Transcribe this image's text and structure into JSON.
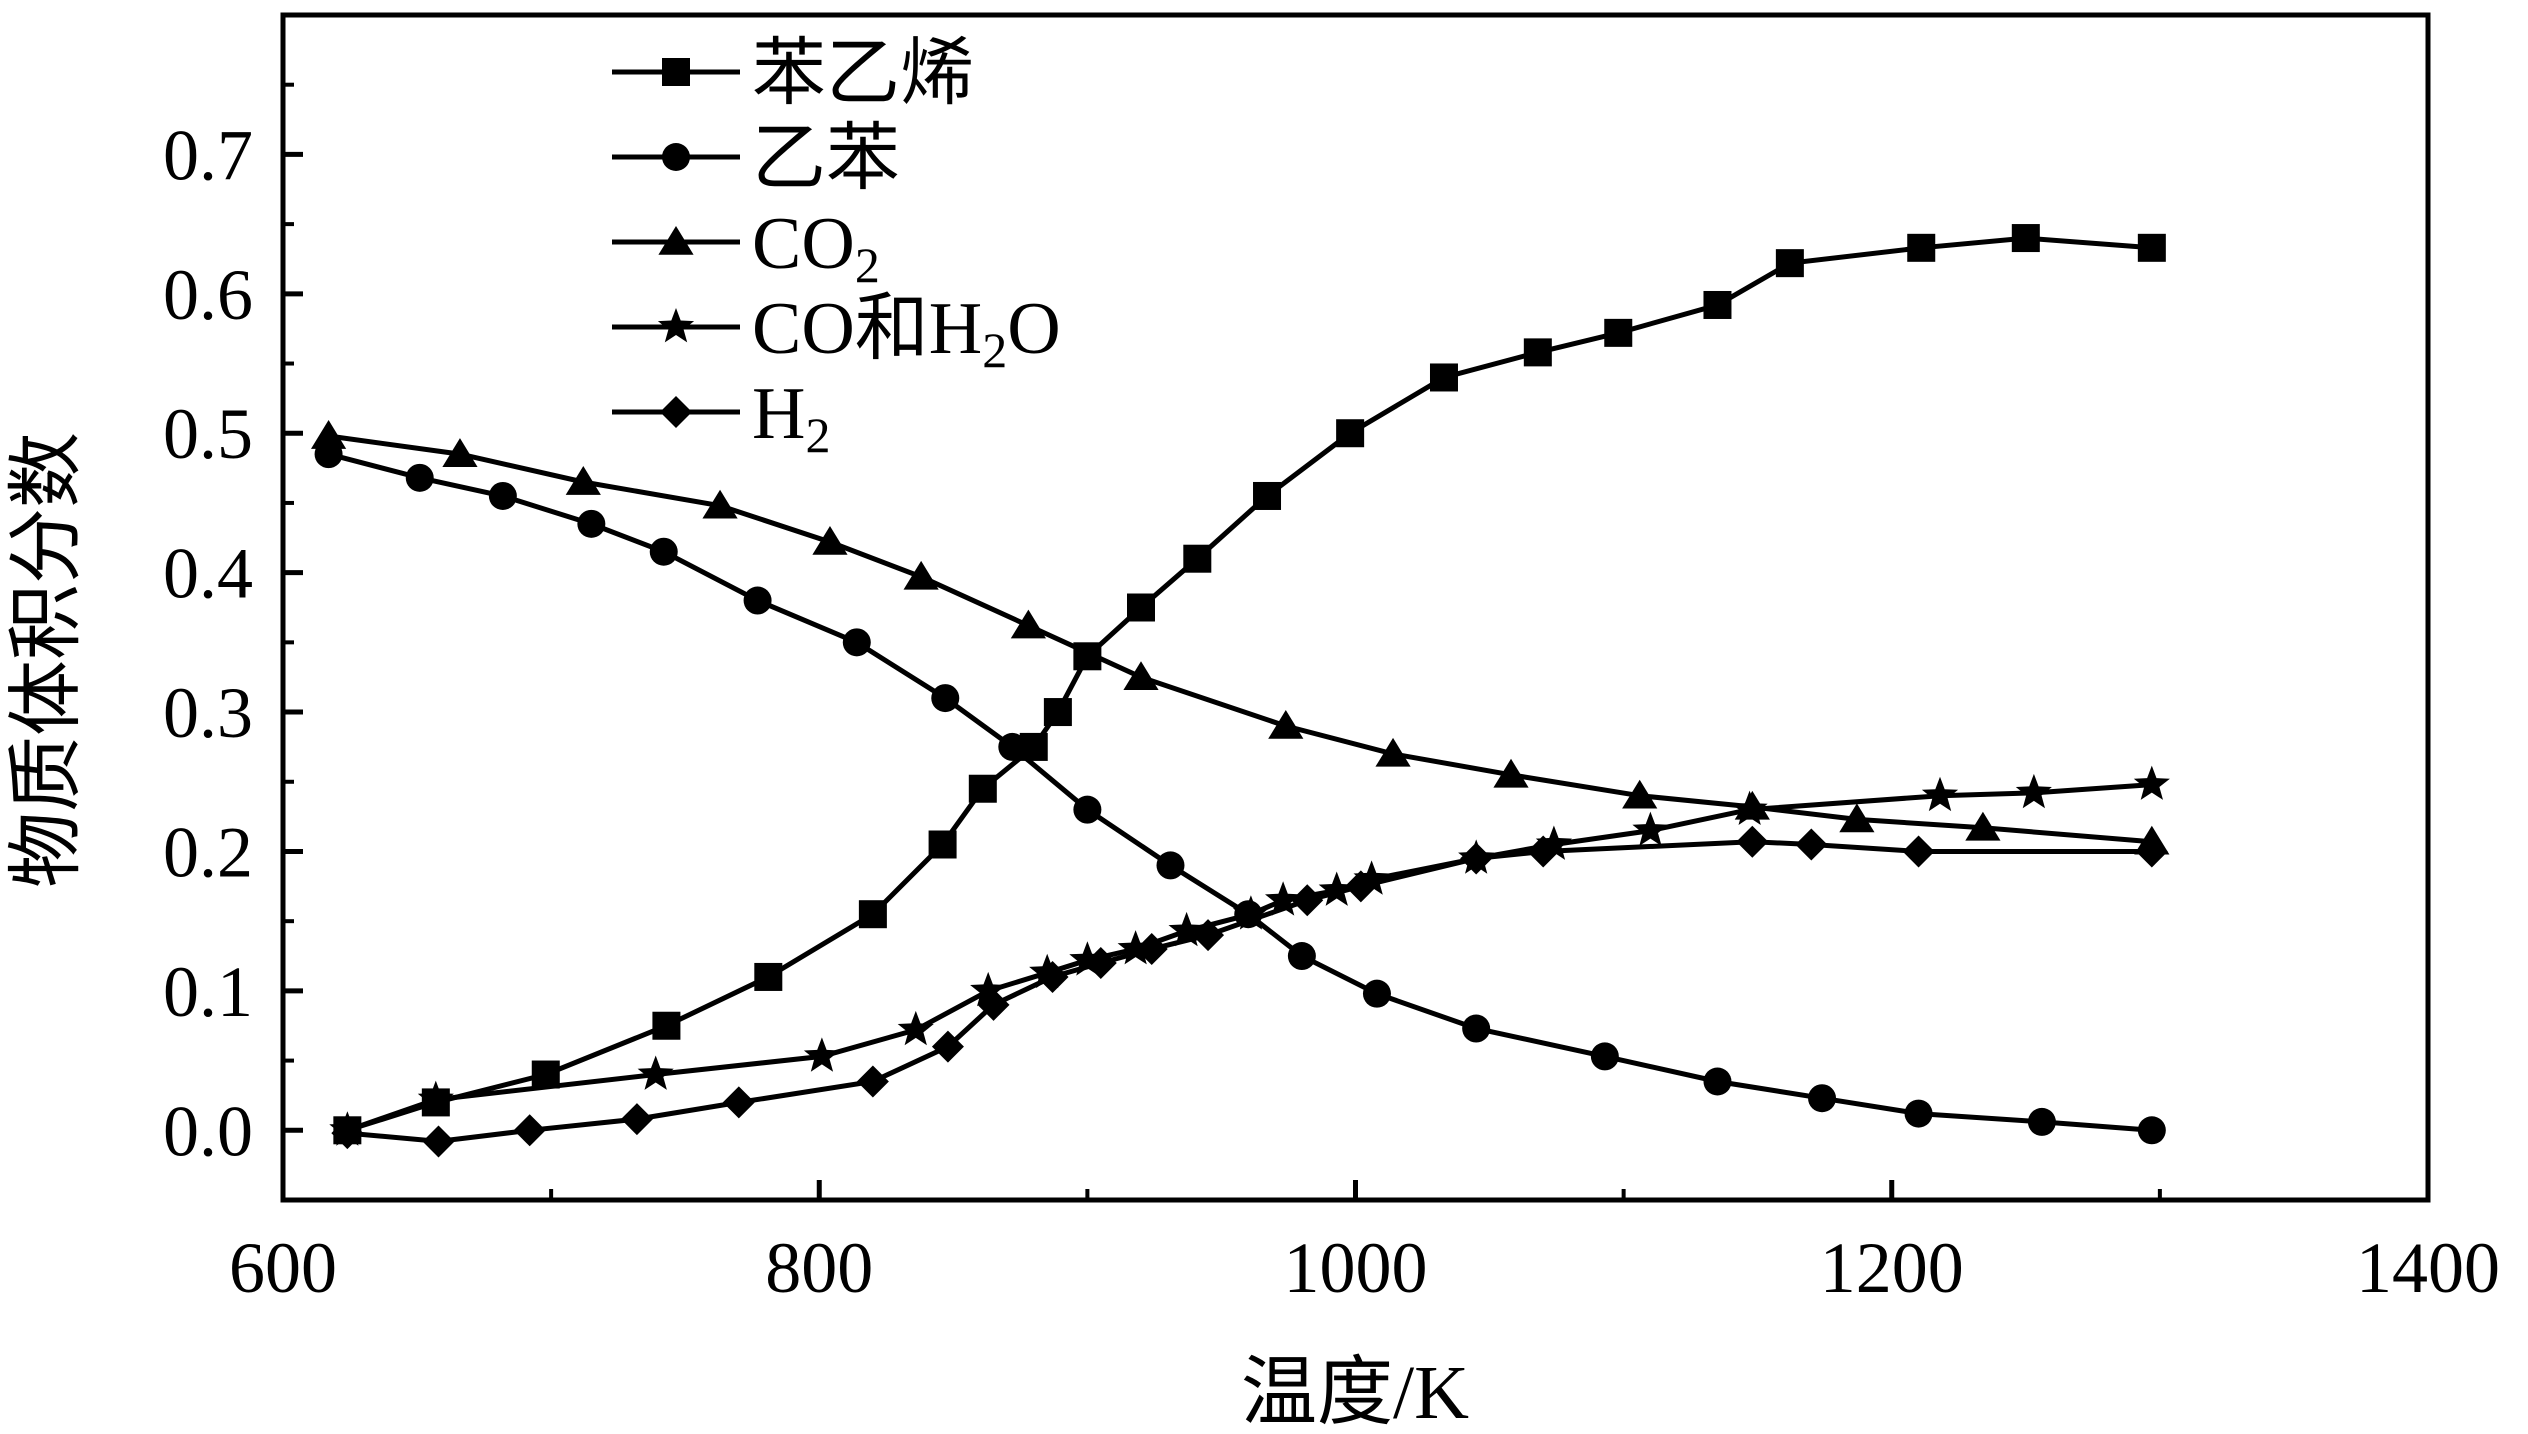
{
  "chart_data": {
    "type": "line",
    "xlabel": "温度/K",
    "ylabel": "物质体积分数",
    "xlim": [
      600,
      1400
    ],
    "ylim": [
      -0.05,
      0.8
    ],
    "xticks": [
      "600",
      "800",
      "1000",
      "1200",
      "1400"
    ],
    "yticks": [
      "0.0",
      "0.1",
      "0.2",
      "0.3",
      "0.4",
      "0.5",
      "0.6",
      "0.7"
    ],
    "grid": false,
    "legend_position": "top-left",
    "series": [
      {
        "name": "苯乙烯",
        "marker": "square",
        "x": [
          624,
          657,
          698,
          743,
          781,
          820,
          846,
          861,
          880,
          889,
          900,
          920,
          941,
          967,
          998,
          1033,
          1068,
          1098,
          1135,
          1162,
          1211,
          1250,
          1297
        ],
        "y": [
          0.0,
          0.02,
          0.04,
          0.075,
          0.11,
          0.155,
          0.205,
          0.245,
          0.275,
          0.3,
          0.34,
          0.375,
          0.41,
          0.455,
          0.5,
          0.54,
          0.558,
          0.572,
          0.592,
          0.622,
          0.633,
          0.64,
          0.633
        ]
      },
      {
        "name": "乙苯",
        "marker": "circle",
        "x": [
          617,
          651,
          682,
          715,
          742,
          777,
          814,
          847,
          872,
          900,
          931,
          960,
          980,
          1008,
          1045,
          1093,
          1135,
          1174,
          1210,
          1256,
          1297
        ],
        "y": [
          0.485,
          0.468,
          0.455,
          0.435,
          0.415,
          0.38,
          0.35,
          0.31,
          0.275,
          0.23,
          0.19,
          0.155,
          0.125,
          0.098,
          0.073,
          0.053,
          0.035,
          0.023,
          0.012,
          0.006,
          0.0
        ]
      },
      {
        "name": "CO2",
        "marker": "triangle",
        "x": [
          617,
          666,
          712,
          763,
          804,
          838,
          878,
          920,
          974,
          1014,
          1058,
          1106,
          1148,
          1187,
          1234,
          1297
        ],
        "y": [
          0.498,
          0.485,
          0.465,
          0.448,
          0.422,
          0.397,
          0.362,
          0.325,
          0.29,
          0.27,
          0.255,
          0.24,
          0.232,
          0.223,
          0.217,
          0.207
        ]
      },
      {
        "name": "CO和H2O",
        "marker": "star",
        "x": [
          624,
          657,
          739,
          801,
          836,
          863,
          885,
          900,
          918,
          937,
          961,
          973,
          993,
          1006,
          1045,
          1074,
          1110,
          1147,
          1218,
          1253,
          1297
        ],
        "y": [
          0.0,
          0.022,
          0.04,
          0.053,
          0.072,
          0.1,
          0.113,
          0.122,
          0.13,
          0.143,
          0.155,
          0.165,
          0.172,
          0.18,
          0.195,
          0.205,
          0.215,
          0.23,
          0.24,
          0.242,
          0.248
        ]
      },
      {
        "name": "H2",
        "marker": "diamond",
        "x": [
          624,
          658,
          692,
          732,
          770,
          820,
          848,
          865,
          887,
          905,
          924,
          945,
          982,
          1002,
          1045,
          1070,
          1148,
          1170,
          1210,
          1297
        ],
        "y": [
          -0.002,
          -0.008,
          0.0,
          0.008,
          0.02,
          0.035,
          0.06,
          0.09,
          0.11,
          0.12,
          0.13,
          0.14,
          0.165,
          0.175,
          0.195,
          0.2,
          0.207,
          0.205,
          0.2,
          0.2
        ]
      }
    ]
  },
  "legend": {
    "items": [
      {
        "label": "苯乙烯",
        "sub": "",
        "tail": ""
      },
      {
        "label": "乙苯",
        "sub": "",
        "tail": ""
      },
      {
        "label": "CO",
        "sub": "2",
        "tail": ""
      },
      {
        "label": "CO和H",
        "sub": "2",
        "tail": "O"
      },
      {
        "label": "H",
        "sub": "2",
        "tail": ""
      }
    ]
  },
  "colors": {
    "ink": "#000000",
    "background": "#ffffff"
  }
}
